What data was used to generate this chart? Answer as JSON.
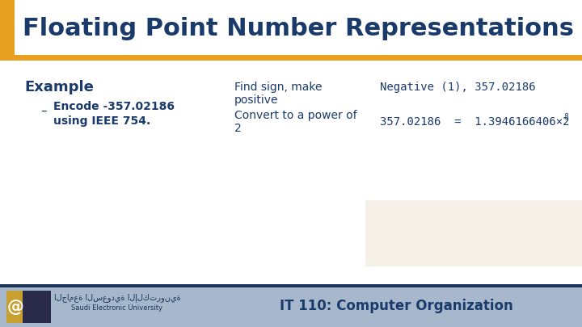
{
  "title": "Floating Point Number Representations",
  "title_color": "#1a3a6b",
  "title_bar_color": "#e8a020",
  "bg_color": "#ffffff",
  "footer_bg_color": "#a8b8cc",
  "footer_text": "IT 110: Computer Organization",
  "footer_text_color": "#1a3a6b",
  "example_label": "Example",
  "example_color": "#1a3a6b",
  "bullet_color": "#1a3a6b",
  "col_text_color": "#1a3a6b",
  "beige_box_color": "#f5f0e8",
  "dark_navy": "#1a3358",
  "negative_text": "Negative (1), 357.02186",
  "eq_main": "357.02186  =  1.3946166406×2",
  "eq_sup": "8"
}
